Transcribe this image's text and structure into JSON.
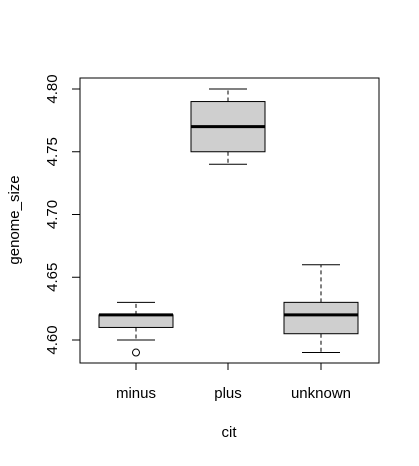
{
  "chart_data": {
    "type": "boxplot",
    "xlabel": "cit",
    "ylabel": "genome_size",
    "categories": [
      "minus",
      "plus",
      "unknown"
    ],
    "ylim": [
      4.58,
      4.805
    ],
    "yticks": [
      4.6,
      4.65,
      4.7,
      4.75,
      4.8
    ],
    "ytick_labels": [
      "4.60",
      "4.65",
      "4.70",
      "4.75",
      "4.80"
    ],
    "boxes": [
      {
        "category": "minus",
        "whisker_low": 4.6,
        "q1": 4.61,
        "median": 4.62,
        "q3": 4.62,
        "whisker_high": 4.63,
        "outliers": [
          4.59
        ]
      },
      {
        "category": "plus",
        "whisker_low": 4.74,
        "q1": 4.75,
        "median": 4.77,
        "q3": 4.79,
        "whisker_high": 4.8,
        "outliers": []
      },
      {
        "category": "unknown",
        "whisker_low": 4.59,
        "q1": 4.605,
        "median": 4.62,
        "q3": 4.63,
        "whisker_high": 4.66,
        "outliers": []
      }
    ],
    "box_fill": "#cfcfcf",
    "stroke": "#000000",
    "grid": false
  }
}
